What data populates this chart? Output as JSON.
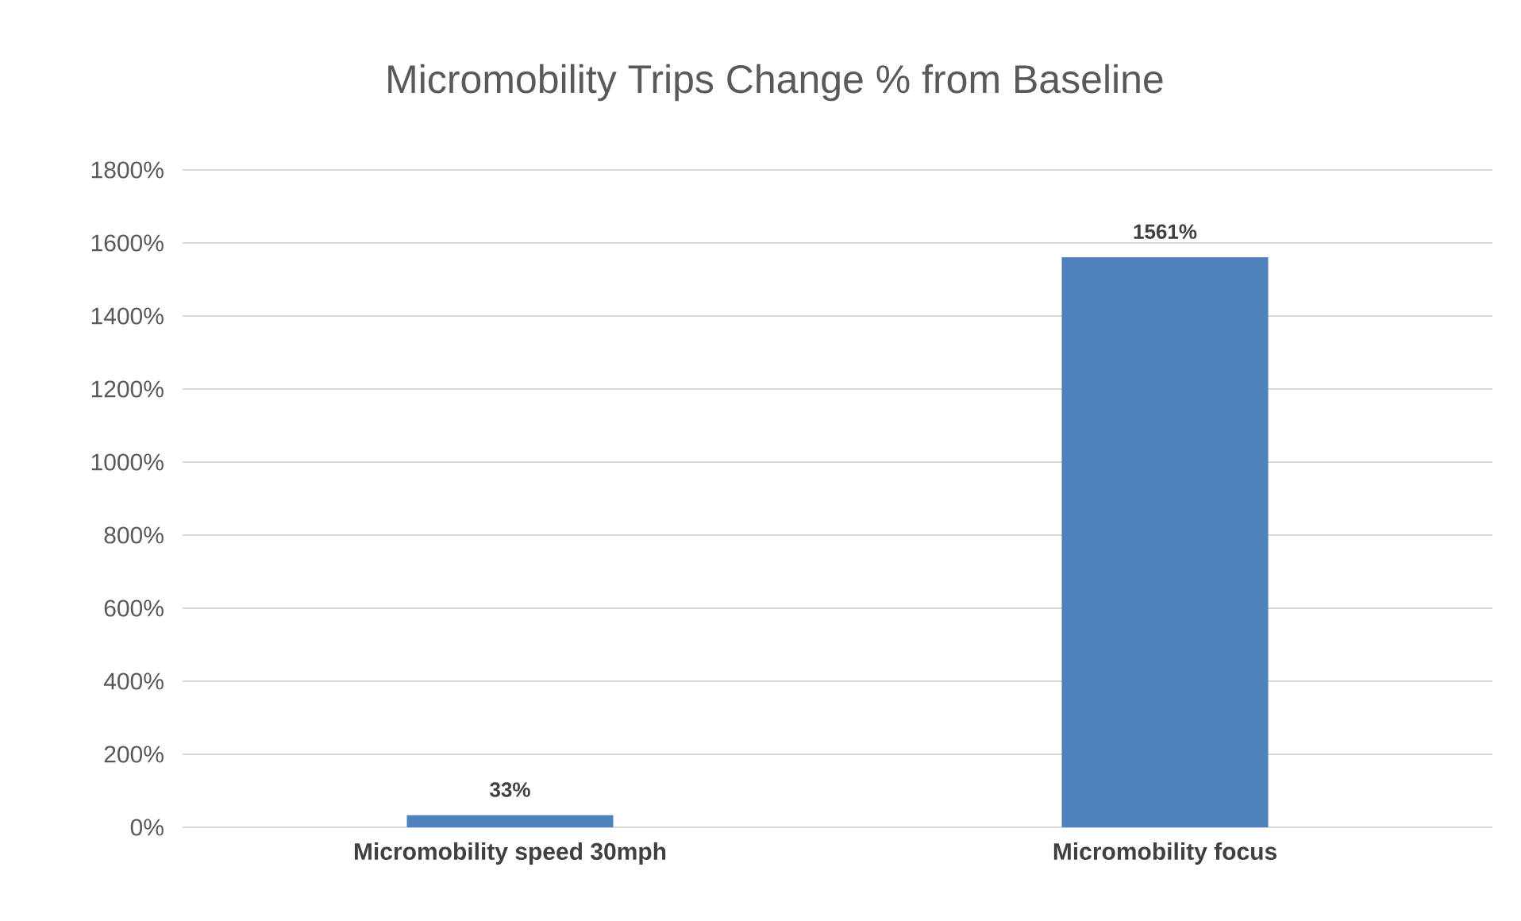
{
  "chart_data": {
    "type": "bar",
    "title": "Micromobility Trips Change % from Baseline",
    "categories": [
      "Micromobility speed 30mph",
      "Micromobility focus"
    ],
    "values": [
      33,
      1561
    ],
    "color": "#4f81bd",
    "value_labels": [
      "33%",
      "1561%"
    ],
    "ylim": [
      0,
      1800
    ],
    "yticks": [
      {
        "value": 0,
        "label": "0%"
      },
      {
        "value": 200,
        "label": "200%"
      },
      {
        "value": 400,
        "label": "400%"
      },
      {
        "value": 600,
        "label": "600%"
      },
      {
        "value": 800,
        "label": "800%"
      },
      {
        "value": 1000,
        "label": "1000%"
      },
      {
        "value": 1200,
        "label": "1200%"
      },
      {
        "value": 1400,
        "label": "1400%"
      },
      {
        "value": 1600,
        "label": "1600%"
      },
      {
        "value": 1800,
        "label": "1800%"
      }
    ],
    "grid": "y"
  }
}
